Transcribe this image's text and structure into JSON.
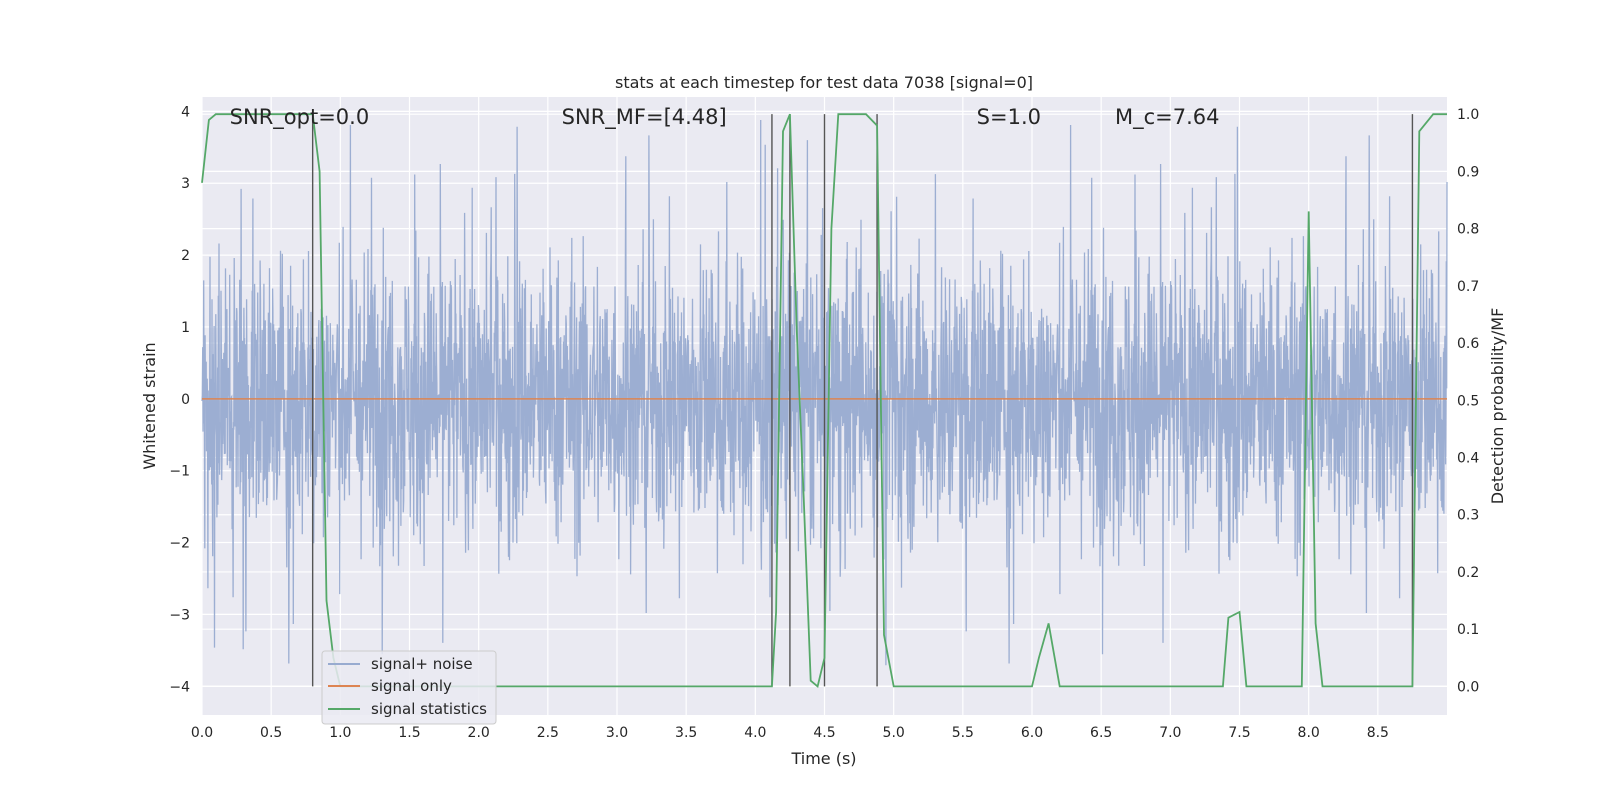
{
  "chart_data": {
    "type": "line",
    "title": "stats at each timestep for test data 7038 [signal=0]",
    "xlabel": "Time (s)",
    "ylabel_left": "Whitened strain",
    "ylabel_right": "Detection probability/MF",
    "xlim": [
      0.0,
      9.0
    ],
    "ylim_left": [
      -4.4,
      4.2
    ],
    "ylim_right": [
      -0.05,
      1.03
    ],
    "x_ticks": [
      "0.0",
      "0.5",
      "1.0",
      "1.5",
      "2.0",
      "2.5",
      "3.0",
      "3.5",
      "4.0",
      "4.5",
      "5.0",
      "5.5",
      "6.0",
      "6.5",
      "7.0",
      "7.5",
      "8.0",
      "8.5"
    ],
    "x_tick_values": [
      0.0,
      0.5,
      1.0,
      1.5,
      2.0,
      2.5,
      3.0,
      3.5,
      4.0,
      4.5,
      5.0,
      5.5,
      6.0,
      6.5,
      7.0,
      7.5,
      8.0,
      8.5
    ],
    "y_ticks_left": [
      "−4",
      "−3",
      "−2",
      "−1",
      "0",
      "1",
      "2",
      "3",
      "4"
    ],
    "y_tick_values_left": [
      -4,
      -3,
      -2,
      -1,
      0,
      1,
      2,
      3,
      4
    ],
    "y_ticks_right": [
      "0.0",
      "0.1",
      "0.2",
      "0.3",
      "0.4",
      "0.5",
      "0.6",
      "0.7",
      "0.8",
      "0.9",
      "1.0"
    ],
    "y_tick_values_right": [
      0.0,
      0.1,
      0.2,
      0.3,
      0.4,
      0.5,
      0.6,
      0.7,
      0.8,
      0.9,
      1.0
    ],
    "grid": true,
    "legend_position": "lower-left",
    "series": [
      {
        "name": "signal+ noise",
        "color": "#98abd0",
        "axis": "left",
        "style": "noise",
        "amplitude_typical": 2.2,
        "amplitude_peak": 4.0
      },
      {
        "name": "signal only",
        "color": "#dd8452",
        "axis": "left",
        "x": [
          0.0,
          9.0
        ],
        "y": [
          0.0,
          0.0
        ]
      },
      {
        "name": "signal statistics",
        "color": "#55a868",
        "axis": "right",
        "x": [
          0.0,
          0.05,
          0.1,
          0.2,
          0.5,
          0.8,
          0.85,
          0.9,
          0.95,
          1.0,
          1.5,
          2.0,
          2.5,
          3.0,
          3.5,
          4.0,
          4.05,
          4.12,
          4.15,
          4.2,
          4.25,
          4.3,
          4.35,
          4.4,
          4.45,
          4.5,
          4.55,
          4.6,
          4.7,
          4.8,
          4.88,
          4.93,
          5.0,
          5.5,
          6.0,
          6.05,
          6.12,
          6.2,
          6.5,
          7.0,
          7.38,
          7.42,
          7.5,
          7.55,
          7.6,
          7.9,
          7.95,
          8.0,
          8.05,
          8.1,
          8.5,
          8.75,
          8.8,
          8.9,
          9.0
        ],
        "y": [
          0.88,
          0.99,
          1.0,
          1.0,
          1.0,
          1.0,
          0.9,
          0.15,
          0.05,
          0.0,
          0.0,
          0.0,
          0.0,
          0.0,
          0.0,
          0.0,
          0.0,
          0.0,
          0.13,
          0.97,
          1.0,
          0.62,
          0.33,
          0.01,
          0.0,
          0.05,
          0.8,
          1.0,
          1.0,
          1.0,
          0.98,
          0.09,
          0.0,
          0.0,
          0.0,
          0.05,
          0.11,
          0.0,
          0.0,
          0.0,
          0.0,
          0.12,
          0.13,
          0.0,
          0.0,
          0.0,
          0.0,
          0.83,
          0.11,
          0.0,
          0.0,
          0.0,
          0.97,
          1.0,
          1.0
        ]
      }
    ],
    "vlines": [
      0.8,
      4.12,
      4.25,
      4.5,
      4.88,
      8.75
    ],
    "vline_color": "#555555",
    "annotations": [
      {
        "text": "SNR_opt=0.0",
        "x": 0.2
      },
      {
        "text": "SNR_MF=[4.48]",
        "x": 2.6
      },
      {
        "text": "S=1.0",
        "x": 5.6
      },
      {
        "text": "M_c=7.64",
        "x": 6.6
      }
    ]
  }
}
